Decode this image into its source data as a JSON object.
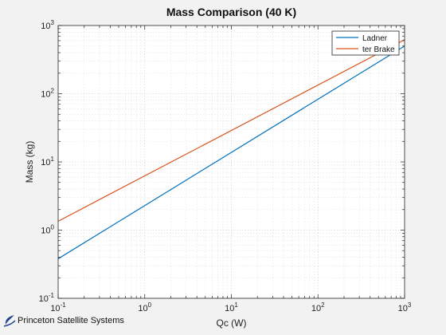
{
  "chart_data": {
    "type": "line",
    "title": "Mass Comparison (40 K)",
    "xlabel": "Qc (W)",
    "ylabel": "Mass (kg)",
    "xscale": "log",
    "yscale": "log",
    "xlim": [
      0.1,
      1000
    ],
    "ylim": [
      0.1,
      1000
    ],
    "grid": "major and minor, dotted",
    "legend_position": "top-right",
    "xticks": [
      {
        "base": "10",
        "exp": "-1"
      },
      {
        "base": "10",
        "exp": "0"
      },
      {
        "base": "10",
        "exp": "1"
      },
      {
        "base": "10",
        "exp": "2"
      },
      {
        "base": "10",
        "exp": "3"
      }
    ],
    "yticks": [
      {
        "base": "10",
        "exp": "-1"
      },
      {
        "base": "10",
        "exp": "0"
      },
      {
        "base": "10",
        "exp": "1"
      },
      {
        "base": "10",
        "exp": "2"
      },
      {
        "base": "10",
        "exp": "3"
      }
    ],
    "series": [
      {
        "name": "Ladner",
        "color": "#0072bd",
        "x": [
          0.1,
          1000
        ],
        "y": [
          0.38,
          500
        ]
      },
      {
        "name": "ter Brake",
        "color": "#d95319",
        "x": [
          0.1,
          1000
        ],
        "y": [
          1.35,
          620
        ]
      }
    ]
  },
  "watermark": {
    "text": "Princeton Satellite Systems",
    "icon": "pss-logo-swoosh-icon"
  }
}
